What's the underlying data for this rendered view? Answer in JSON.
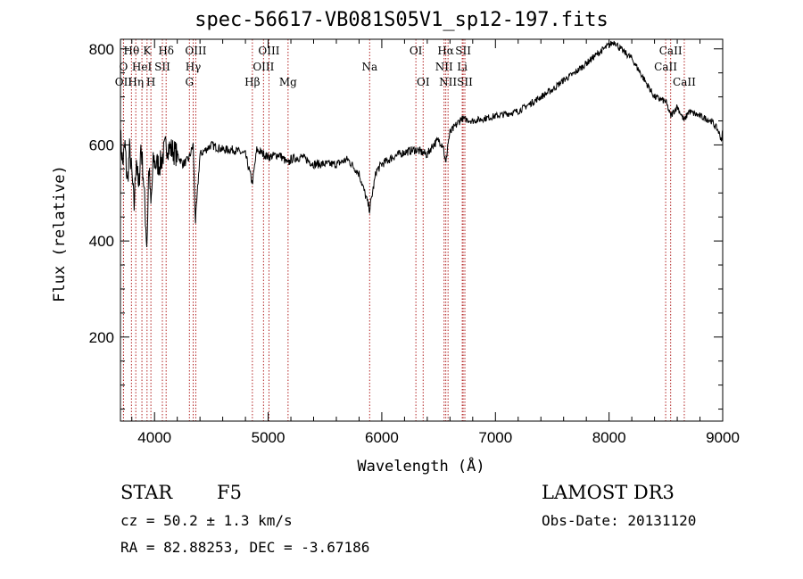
{
  "chart_data": {
    "type": "line",
    "title": "spec-56617-VB081S05V1_sp12-197.fits",
    "xlabel": "Wavelength (Å)",
    "ylabel": "Flux (relative)",
    "xlim": [
      3700,
      9000
    ],
    "ylim": [
      25,
      820
    ],
    "x_ticks": [
      4000,
      5000,
      6000,
      7000,
      8000,
      9000
    ],
    "x_tick_labels": [
      "4000",
      "5000",
      "6000",
      "7000",
      "8000",
      "9000"
    ],
    "y_ticks": [
      200,
      400,
      600,
      800
    ],
    "y_tick_labels": [
      "200",
      "400",
      "600",
      "800"
    ],
    "series": [
      {
        "name": "spectrum",
        "x": [
          3700,
          3720,
          3740,
          3760,
          3780,
          3800,
          3820,
          3840,
          3860,
          3880,
          3900,
          3920,
          3933,
          3950,
          3968,
          3990,
          4010,
          4050,
          4102,
          4150,
          4200,
          4250,
          4300,
          4340,
          4360,
          4400,
          4500,
          4600,
          4700,
          4800,
          4861,
          4900,
          5000,
          5100,
          5175,
          5200,
          5300,
          5400,
          5500,
          5600,
          5700,
          5800,
          5893,
          5950,
          6000,
          6100,
          6200,
          6300,
          6400,
          6450,
          6500,
          6540,
          6563,
          6580,
          6600,
          6650,
          6700,
          6800,
          6900,
          7000,
          7100,
          7200,
          7300,
          7400,
          7500,
          7600,
          7700,
          7800,
          7900,
          8000,
          8050,
          8100,
          8200,
          8300,
          8400,
          8500,
          8542,
          8600,
          8662,
          8700,
          8800,
          8900,
          8960,
          8990,
          9000
        ],
        "y": [
          620,
          560,
          600,
          520,
          590,
          540,
          470,
          580,
          500,
          600,
          540,
          450,
          390,
          560,
          470,
          570,
          560,
          560,
          600,
          590,
          580,
          560,
          570,
          600,
          440,
          580,
          600,
          590,
          590,
          580,
          520,
          590,
          575,
          580,
          560,
          570,
          575,
          560,
          560,
          560,
          570,
          540,
          465,
          545,
          560,
          575,
          585,
          590,
          580,
          600,
          610,
          600,
          558,
          600,
          625,
          640,
          655,
          650,
          655,
          660,
          665,
          670,
          685,
          700,
          715,
          735,
          750,
          770,
          790,
          808,
          815,
          800,
          780,
          740,
          700,
          690,
          660,
          680,
          650,
          670,
          660,
          650,
          630,
          610,
          630
        ]
      }
    ],
    "line_markers": [
      {
        "label": "Hθ",
        "x": 3797,
        "row": 1
      },
      {
        "label": "O",
        "x": 3727,
        "row": 2
      },
      {
        "label": "OII",
        "x": 3727,
        "row": 3
      },
      {
        "label": "Hη",
        "x": 3835,
        "row": 3
      },
      {
        "label": "HeI",
        "x": 3889,
        "row": 2
      },
      {
        "label": "K",
        "x": 3934,
        "row": 1
      },
      {
        "label": "H",
        "x": 3968,
        "row": 3
      },
      {
        "label": "SII",
        "x": 4069,
        "row": 2
      },
      {
        "label": "Hδ",
        "x": 4102,
        "row": 1
      },
      {
        "label": "OIII",
        "x": 4363,
        "row": 1
      },
      {
        "label": "Hγ",
        "x": 4340,
        "row": 2
      },
      {
        "label": "G",
        "x": 4307,
        "row": 3
      },
      {
        "label": "Hβ",
        "x": 4861,
        "row": 3
      },
      {
        "label": "OIII",
        "x": 5007,
        "row": 1
      },
      {
        "label": "OIII",
        "x": 4959,
        "row": 2
      },
      {
        "label": "Mg",
        "x": 5175,
        "row": 3
      },
      {
        "label": "Na",
        "x": 5893,
        "row": 2
      },
      {
        "label": "OI",
        "x": 6300,
        "row": 1
      },
      {
        "label": "OI",
        "x": 6364,
        "row": 3
      },
      {
        "label": "Hα",
        "x": 6563,
        "row": 1
      },
      {
        "label": "SII",
        "x": 6716,
        "row": 1
      },
      {
        "label": "NII",
        "x": 6548,
        "row": 2
      },
      {
        "label": "Li",
        "x": 6708,
        "row": 2
      },
      {
        "label": "NII",
        "x": 6583,
        "row": 3
      },
      {
        "label": "SII",
        "x": 6731,
        "row": 3
      },
      {
        "label": "CaII",
        "x": 8542,
        "row": 1
      },
      {
        "label": "CaII",
        "x": 8498,
        "row": 2
      },
      {
        "label": "CaII",
        "x": 8662,
        "row": 3
      }
    ],
    "marker_color": "#b22222",
    "line_color": "#000000"
  },
  "info": {
    "object_type": "STAR",
    "subclass": "F5",
    "redshift": "cz = 50.2 ± 1.3 km/s",
    "coords": "RA =  82.88253, DEC =  -3.67186",
    "survey": "LAMOST DR3",
    "obs_date": "Obs-Date: 20131120"
  }
}
